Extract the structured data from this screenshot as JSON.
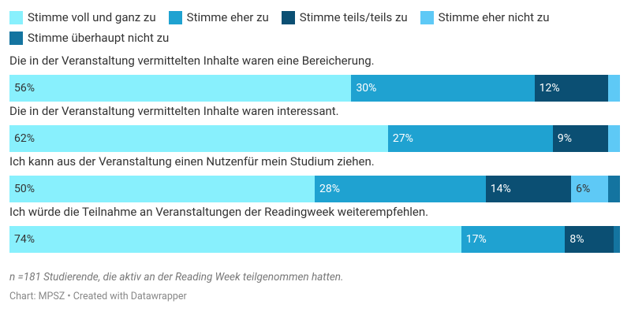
{
  "chart_data": {
    "type": "bar",
    "orientation": "horizontal",
    "stacked": true,
    "categories": [
      "Die in der Veranstaltung vermittelten Inhalte waren eine Bereicherung.",
      "Die in der Veranstaltung vermittelten Inhalte waren interessant.",
      "Ich kann aus der Veranstaltung einen Nutzenfür mein Studium ziehen.",
      "Ich würde die Teilnahme an Veranstaltungen der Readingweek weiterempfehlen."
    ],
    "xlim": [
      0,
      100
    ],
    "series": [
      {
        "name": "Stimme voll und ganz zu",
        "color": "#88f0fd",
        "values": [
          56,
          62,
          50,
          74
        ],
        "value_labels": [
          "56%",
          "62%",
          "50%",
          "74%"
        ]
      },
      {
        "name": "Stimme eher zu",
        "color": "#1fa2d1",
        "values": [
          30,
          27,
          28,
          17
        ],
        "value_labels": [
          "30%",
          "27%",
          "28%",
          "17%"
        ]
      },
      {
        "name": "Stimme teils/teils zu",
        "color": "#0b4f73",
        "values": [
          12,
          9,
          14,
          8
        ],
        "value_labels": [
          "12%",
          "9%",
          "14%",
          "8%"
        ]
      },
      {
        "name": "Stimme eher nicht zu",
        "color": "#5ec9f6",
        "values": [
          2,
          2,
          6,
          0
        ],
        "value_labels": [
          null,
          null,
          "6%",
          null
        ]
      },
      {
        "name": "Stimme überhaupt nicht zu",
        "color": "#1474a0",
        "values": [
          0,
          0,
          2,
          1
        ],
        "value_labels": [
          null,
          null,
          null,
          null
        ]
      }
    ],
    "note": "n =181 Studierende, die aktiv an der Reading Week teilgenommen hatten.",
    "source": "Chart: MPSZ • Created with Datawrapper"
  }
}
